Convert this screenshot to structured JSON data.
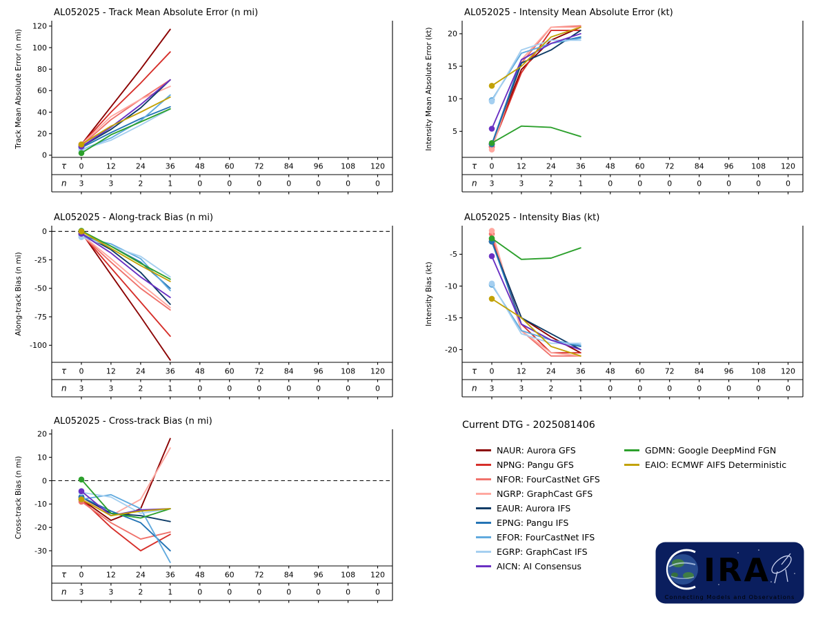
{
  "figure": {
    "background": "#ffffff"
  },
  "storm_id": "AL052025",
  "models": [
    {
      "id": "NAUR",
      "label": "NAUR: Aurora GFS",
      "color": "#8b0000"
    },
    {
      "id": "NPNG",
      "label": "NPNG: Pangu GFS",
      "color": "#d62f2a"
    },
    {
      "id": "NFOR",
      "label": "NFOR: FourCastNet GFS",
      "color": "#f0726b"
    },
    {
      "id": "NGRP",
      "label": "NGRP: GraphCast GFS",
      "color": "#ffa8a0"
    },
    {
      "id": "EAUR",
      "label": "EAUR: Aurora IFS",
      "color": "#0d3b66"
    },
    {
      "id": "EPNG",
      "label": "EPNG: Pangu IFS",
      "color": "#2474b5"
    },
    {
      "id": "EFOR",
      "label": "EFOR: FourCastNet IFS",
      "color": "#61aade"
    },
    {
      "id": "EGRP",
      "label": "EGRP: GraphCast IFS",
      "color": "#a5cff0"
    },
    {
      "id": "AICN",
      "label": "AICN: AI Consensus",
      "color": "#6a30c3"
    },
    {
      "id": "GDMN",
      "label": "GDMN: Google DeepMind FGN",
      "color": "#2ca02c"
    },
    {
      "id": "EAIO",
      "label": "EAIO: ECMWF AIFS Deterministic",
      "color": "#c2a206"
    }
  ],
  "x_axis": {
    "tau_symbol": "τ",
    "n_symbol": "n",
    "tau_ticks": [
      0,
      12,
      24,
      36,
      48,
      60,
      72,
      84,
      96,
      108,
      120
    ],
    "n_counts": [
      3,
      3,
      2,
      1,
      0,
      0,
      0,
      0,
      0,
      0,
      0
    ],
    "xlim": [
      -12,
      126
    ]
  },
  "chart_data": [
    {
      "type": "line",
      "title": "AL052025 - Track Mean Absolute Error (n mi)",
      "ylabel": "Track Mean Absolute Error (n mi)",
      "ylim": [
        -2,
        125
      ],
      "yticks": [
        0,
        20,
        40,
        60,
        80,
        100,
        120
      ],
      "zero_line": false,
      "x": [
        0,
        12,
        24,
        36
      ],
      "series": [
        {
          "model": "NAUR",
          "values": [
            10,
            45,
            80,
            117
          ]
        },
        {
          "model": "NPNG",
          "values": [
            10,
            40,
            67,
            96
          ]
        },
        {
          "model": "NFOR",
          "values": [
            9,
            33,
            52,
            70
          ]
        },
        {
          "model": "NGRP",
          "values": [
            10,
            36,
            52,
            64
          ]
        },
        {
          "model": "EAUR",
          "values": [
            8,
            24,
            44,
            70
          ]
        },
        {
          "model": "EPNG",
          "values": [
            7,
            21,
            34,
            45
          ]
        },
        {
          "model": "EFOR",
          "values": [
            5,
            16,
            32,
            56
          ]
        },
        {
          "model": "EGRP",
          "values": [
            5,
            14,
            28,
            43
          ]
        },
        {
          "model": "AICN",
          "values": [
            8,
            26,
            47,
            70
          ]
        },
        {
          "model": "GDMN",
          "values": [
            2,
            19,
            31,
            43
          ]
        },
        {
          "model": "EAIO",
          "values": [
            10,
            27,
            40,
            54
          ]
        }
      ]
    },
    {
      "type": "line",
      "title": "AL052025 - Intensity Mean Absolute Error (kt)",
      "ylabel": "Intensity Mean Absolute Error (kt)",
      "ylim": [
        1,
        22
      ],
      "yticks": [
        5,
        10,
        15,
        20
      ],
      "zero_line": false,
      "x": [
        0,
        12,
        24,
        36
      ],
      "series": [
        {
          "model": "NAUR",
          "values": [
            3,
            14.5,
            19,
            21
          ]
        },
        {
          "model": "NPNG",
          "values": [
            2.6,
            14,
            20.5,
            20.5
          ]
        },
        {
          "model": "NFOR",
          "values": [
            2.6,
            15.5,
            21,
            21.2
          ]
        },
        {
          "model": "NGRP",
          "values": [
            2.2,
            16,
            21,
            21
          ]
        },
        {
          "model": "EAUR",
          "values": [
            3,
            15.5,
            17.5,
            20.5
          ]
        },
        {
          "model": "EPNG",
          "values": [
            3,
            16,
            18.5,
            19.5
          ]
        },
        {
          "model": "EFOR",
          "values": [
            9.8,
            17,
            18.5,
            19.3
          ]
        },
        {
          "model": "EGRP",
          "values": [
            9.6,
            17.5,
            19,
            19
          ]
        },
        {
          "model": "AICN",
          "values": [
            5.4,
            16,
            18.5,
            20
          ]
        },
        {
          "model": "GDMN",
          "values": [
            3.2,
            5.8,
            5.6,
            4.2
          ]
        },
        {
          "model": "EAIO",
          "values": [
            12,
            15,
            19.5,
            21
          ]
        }
      ]
    },
    {
      "type": "line",
      "title": "AL052025 - Along-track Bias (n mi)",
      "ylabel": "Along-track Bias (n mi)",
      "ylim": [
        -115,
        5
      ],
      "yticks": [
        0,
        -25,
        -50,
        -75,
        -100
      ],
      "zero_line": true,
      "x": [
        0,
        12,
        24,
        36
      ],
      "series": [
        {
          "model": "NAUR",
          "values": [
            -1,
            -38,
            -75,
            -113
          ]
        },
        {
          "model": "NPNG",
          "values": [
            -2,
            -32,
            -62,
            -92
          ]
        },
        {
          "model": "NFOR",
          "values": [
            -3,
            -27,
            -50,
            -69
          ]
        },
        {
          "model": "NGRP",
          "values": [
            -3,
            -24,
            -46,
            -67
          ]
        },
        {
          "model": "EAUR",
          "values": [
            -2,
            -16,
            -36,
            -64
          ]
        },
        {
          "model": "EPNG",
          "values": [
            -3,
            -13,
            -27,
            -50
          ]
        },
        {
          "model": "EFOR",
          "values": [
            -5,
            -11,
            -24,
            -52
          ]
        },
        {
          "model": "EGRP",
          "values": [
            -5,
            -13,
            -22,
            -40
          ]
        },
        {
          "model": "AICN",
          "values": [
            -2,
            -19,
            -40,
            -58
          ]
        },
        {
          "model": "GDMN",
          "values": [
            0.5,
            -13,
            -28,
            -42
          ]
        },
        {
          "model": "EAIO",
          "values": [
            0,
            -15,
            -30,
            -44
          ]
        }
      ]
    },
    {
      "type": "line",
      "title": "AL052025 - Intensity Bias (kt)",
      "ylabel": "Intensity Bias (kt)",
      "ylim": [
        -22,
        -0.5
      ],
      "yticks": [
        -5,
        -10,
        -15,
        -20
      ],
      "zero_line": false,
      "x": [
        0,
        12,
        24,
        36
      ],
      "series": [
        {
          "model": "NAUR",
          "values": [
            -3,
            -15,
            -18,
            -20.5
          ]
        },
        {
          "model": "NPNG",
          "values": [
            -2.6,
            -16,
            -20.5,
            -20.5
          ]
        },
        {
          "model": "NFOR",
          "values": [
            -1.8,
            -17,
            -21,
            -21
          ]
        },
        {
          "model": "NGRP",
          "values": [
            -1.3,
            -17,
            -20.5,
            -21
          ]
        },
        {
          "model": "EAUR",
          "values": [
            -3,
            -15,
            -17.5,
            -20
          ]
        },
        {
          "model": "EPNG",
          "values": [
            -3,
            -16,
            -18.5,
            -19.5
          ]
        },
        {
          "model": "EFOR",
          "values": [
            -9.8,
            -17,
            -18.5,
            -19.3
          ]
        },
        {
          "model": "EGRP",
          "values": [
            -9.6,
            -17.5,
            -19,
            -19
          ]
        },
        {
          "model": "AICN",
          "values": [
            -5.3,
            -16,
            -18.5,
            -20
          ]
        },
        {
          "model": "GDMN",
          "values": [
            -2.5,
            -5.8,
            -5.6,
            -4
          ]
        },
        {
          "model": "EAIO",
          "values": [
            -12,
            -15,
            -19.5,
            -21
          ]
        }
      ]
    },
    {
      "type": "line",
      "title": "AL052025 - Cross-track Bias (n mi)",
      "ylabel": "Cross-track Bias (n mi)",
      "ylim": [
        -36.5,
        22
      ],
      "yticks": [
        20,
        10,
        0,
        -10,
        -20,
        -30
      ],
      "zero_line": true,
      "x": [
        0,
        12,
        24,
        36
      ],
      "series": [
        {
          "model": "NAUR",
          "values": [
            -8,
            -17,
            -12,
            18
          ]
        },
        {
          "model": "NPNG",
          "values": [
            -8,
            -20,
            -30,
            -23
          ]
        },
        {
          "model": "NFOR",
          "values": [
            -9,
            -18,
            -25,
            -22
          ]
        },
        {
          "model": "NGRP",
          "values": [
            -7,
            -15,
            -8,
            14
          ]
        },
        {
          "model": "EAUR",
          "values": [
            -7,
            -14,
            -15,
            -17.5
          ]
        },
        {
          "model": "EPNG",
          "values": [
            -7,
            -13,
            -18,
            -30
          ]
        },
        {
          "model": "EFOR",
          "values": [
            -8,
            -6,
            -12,
            -35
          ]
        },
        {
          "model": "EGRP",
          "values": [
            -5,
            -7,
            -14,
            -12
          ]
        },
        {
          "model": "AICN",
          "values": [
            -4.5,
            -15,
            -12.5,
            -12
          ]
        },
        {
          "model": "GDMN",
          "values": [
            0.5,
            -14,
            -16,
            -12
          ]
        },
        {
          "model": "EAIO",
          "values": [
            -8,
            -15,
            -13,
            -12
          ]
        }
      ]
    }
  ],
  "legend": {
    "title": "Current DTG - 2025081406",
    "columns": [
      [
        "NAUR",
        "NPNG",
        "NFOR",
        "NGRP",
        "EAUR",
        "EPNG",
        "EFOR",
        "EGRP",
        "AICN"
      ],
      [
        "GDMN",
        "EAIO"
      ]
    ],
    "logo": {
      "wordmark": "CIRA",
      "tagline": "Connecting Models and Observations"
    }
  }
}
